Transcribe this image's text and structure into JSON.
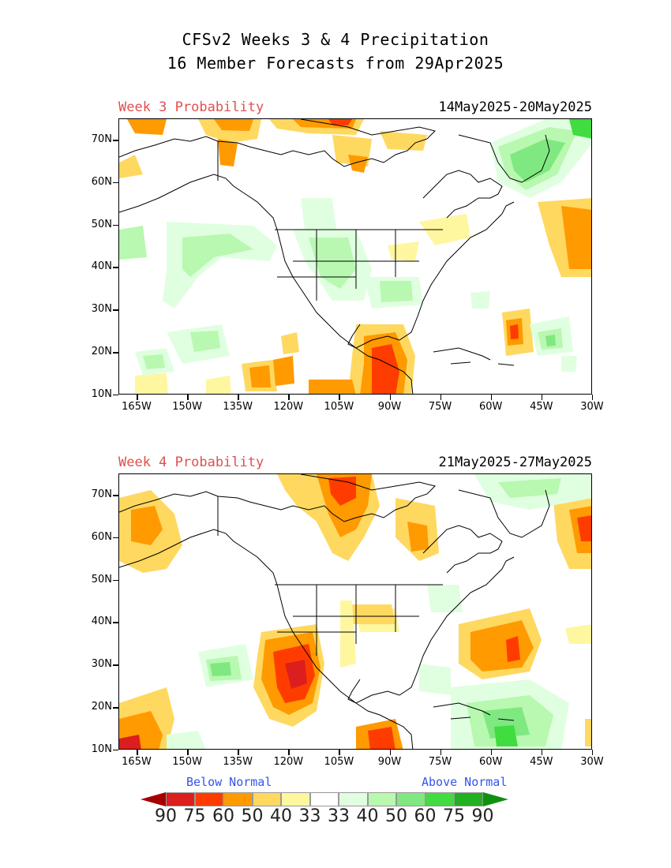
{
  "header": {
    "title_line1": "CFSv2 Weeks 3 & 4 Precipitation",
    "title_line2": "16 Member Forecasts from 29Apr2025"
  },
  "panels": [
    {
      "label": "Week 3 Probability",
      "dates": "14May2025-20May2025"
    },
    {
      "label": "Week 4 Probability",
      "dates": "21May2025-27May2025"
    }
  ],
  "axes": {
    "lat_labels": [
      "70N",
      "60N",
      "50N",
      "40N",
      "30N",
      "20N",
      "10N"
    ],
    "lon_labels": [
      "165W",
      "150W",
      "135W",
      "120W",
      "105W",
      "90W",
      "75W",
      "60W",
      "45W",
      "30W"
    ]
  },
  "legend": {
    "below_label": "Below Normal",
    "above_label": "Above Normal",
    "values": [
      "90",
      "75",
      "60",
      "50",
      "40",
      "33",
      "33",
      "40",
      "50",
      "60",
      "75",
      "90"
    ],
    "colors": [
      "#a50000",
      "#dc1e1e",
      "#ff3c00",
      "#ff9a00",
      "#ffd860",
      "#fff6a0",
      "#ffffff",
      "#e0ffe0",
      "#b8f8b0",
      "#80e880",
      "#40dc40",
      "#20b020",
      "#109010"
    ]
  }
}
